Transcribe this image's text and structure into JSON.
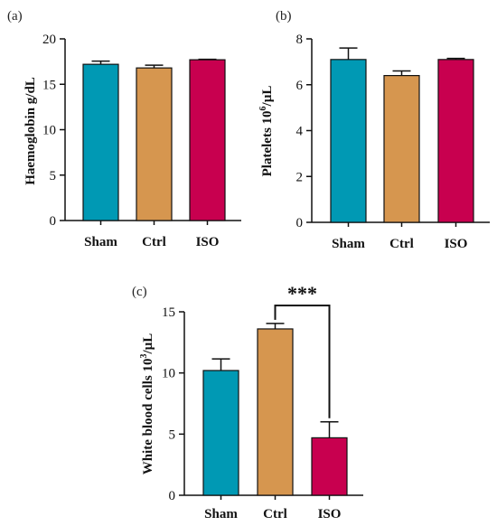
{
  "chart_data": [
    {
      "panel": "(a)",
      "type": "bar",
      "categories": [
        "Sham",
        "Ctrl",
        "ISO"
      ],
      "values": [
        17.2,
        16.8,
        17.7
      ],
      "errors": [
        0.35,
        0.3,
        0.05
      ],
      "ylabel": "Haemoglobin g/dL",
      "ylim": [
        0,
        20
      ],
      "yticks": [
        0,
        5,
        10,
        15,
        20
      ],
      "colors": [
        "#0099b4",
        "#d6964f",
        "#c8004f"
      ]
    },
    {
      "panel": "(b)",
      "type": "bar",
      "categories": [
        "Sham",
        "Ctrl",
        "ISO"
      ],
      "values": [
        7.1,
        6.4,
        7.1
      ],
      "errors": [
        0.5,
        0.2,
        0.05
      ],
      "ylabel_main": "Platelets 10",
      "ylabel_sup": "6",
      "ylabel_unit": "/µL",
      "ylim": [
        0,
        8
      ],
      "yticks": [
        0,
        2,
        4,
        6,
        8
      ],
      "colors": [
        "#0099b4",
        "#d6964f",
        "#c8004f"
      ]
    },
    {
      "panel": "(c)",
      "type": "bar",
      "categories": [
        "Sham",
        "Ctrl",
        "ISO"
      ],
      "values": [
        10.2,
        13.6,
        4.7
      ],
      "errors": [
        0.95,
        0.45,
        1.3
      ],
      "ylabel_main": "White blood cells 10",
      "ylabel_sup": "3",
      "ylabel_unit": "/µL",
      "ylim": [
        0,
        15
      ],
      "yticks": [
        0,
        5,
        10,
        15
      ],
      "colors": [
        "#0099b4",
        "#d6964f",
        "#c8004f"
      ],
      "annotation": {
        "text": "***",
        "from": "Ctrl",
        "to": "ISO"
      }
    }
  ]
}
